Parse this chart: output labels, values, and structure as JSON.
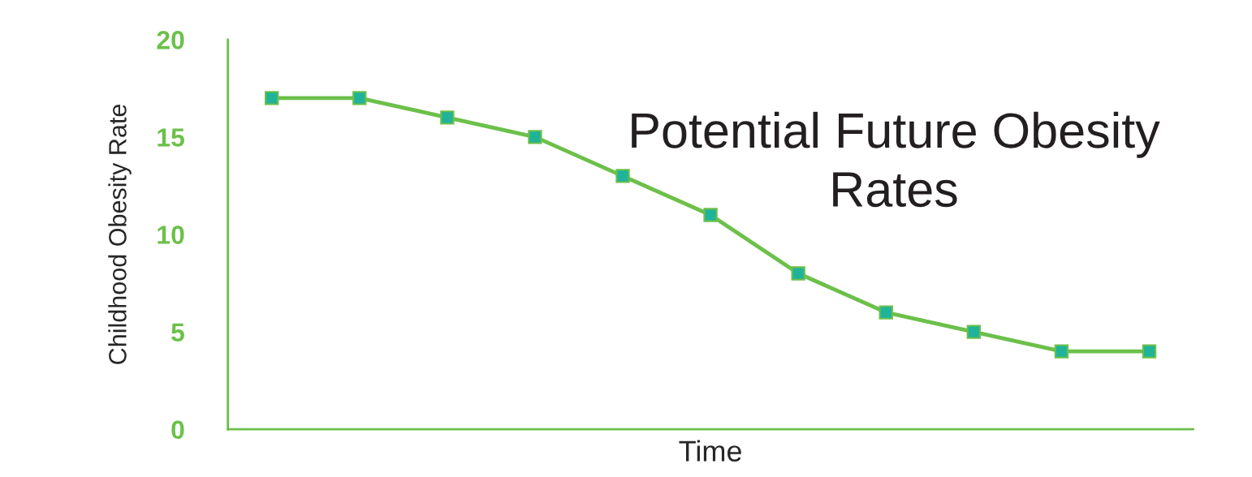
{
  "chart_data": {
    "type": "line",
    "title": "Potential Future Obesity Rates",
    "xlabel": "Time",
    "ylabel": "Childhood Obesity Rate",
    "categories": [
      null,
      null,
      null,
      null,
      null,
      null,
      null,
      null,
      null,
      null,
      null
    ],
    "series": [
      {
        "color": "#6cc04a",
        "values": [
          17,
          17,
          16,
          15,
          13,
          11,
          8,
          6,
          5,
          4,
          4
        ]
      }
    ],
    "ylim": [
      0,
      20
    ],
    "yticks": [
      0,
      5,
      10,
      15,
      20
    ],
    "grid": false,
    "legend": false,
    "marker": "square",
    "line_style": "solid"
  }
}
